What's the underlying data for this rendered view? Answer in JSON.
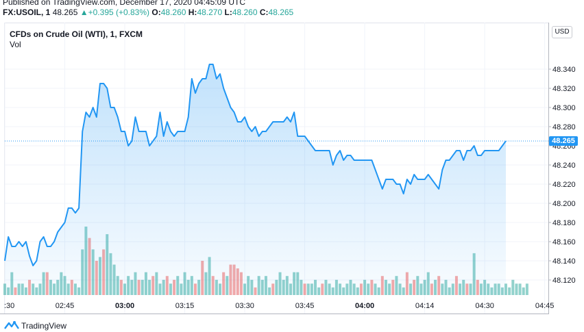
{
  "header": {
    "published": "Published on TradingView.com, December 17, 2020 04:45:09 UTC",
    "symbol": "FX:USOIL, 1",
    "last": "48.265",
    "change_arrow": "▲",
    "change": "+0.395 (+0.83%)",
    "o_label": "O:",
    "o_value": "48.260",
    "h_label": "H:",
    "h_value": "48.270",
    "l_label": "L:",
    "l_value": "48.260",
    "c_label": "C:",
    "c_value": "48.265"
  },
  "legend": {
    "title": "CFDs on Crude Oil (WTI), 1, FXCM",
    "vol": "Vol"
  },
  "currency_badge": "USD",
  "current_price_tag": "48.265",
  "footer": {
    "brand": "TradingView"
  },
  "colors": {
    "line": "#2196f3",
    "area": "#2196f3",
    "vol_up": "#26a69a",
    "vol_down": "#ef5350",
    "grid": "#f0f3fa"
  },
  "chart_data": {
    "type": "area",
    "ylim": [
      48.11,
      48.355
    ],
    "y_ticks": [
      "48.340",
      "48.320",
      "48.300",
      "48.280",
      "48.260",
      "48.240",
      "48.220",
      "48.200",
      "48.180",
      "48.160",
      "48.140",
      "48.120"
    ],
    "x_ticks": [
      {
        "label": ":30",
        "bold": false
      },
      {
        "label": "02:45",
        "bold": false
      },
      {
        "label": "03:00",
        "bold": true
      },
      {
        "label": "03:15",
        "bold": false
      },
      {
        "label": "03:30",
        "bold": false
      },
      {
        "label": "03:45",
        "bold": false
      },
      {
        "label": "04:00",
        "bold": true
      },
      {
        "label": "04:14",
        "bold": false
      },
      {
        "label": "04:30",
        "bold": false
      },
      {
        "label": "04:45",
        "bold": false
      }
    ],
    "x_tick_index": [
      0,
      17,
      34,
      51,
      68,
      85,
      102,
      119,
      136,
      153
    ],
    "current_price": 48.265,
    "values": [
      48.14,
      48.165,
      48.155,
      48.155,
      48.16,
      48.155,
      48.16,
      48.145,
      48.135,
      48.14,
      48.16,
      48.165,
      48.155,
      48.155,
      48.16,
      48.17,
      48.175,
      48.18,
      48.195,
      48.195,
      48.19,
      48.195,
      48.275,
      48.295,
      48.29,
      48.3,
      48.29,
      48.325,
      48.325,
      48.32,
      48.3,
      48.3,
      48.29,
      48.275,
      48.275,
      48.26,
      48.265,
      48.29,
      48.275,
      48.275,
      48.275,
      48.26,
      48.265,
      48.27,
      48.295,
      48.27,
      48.285,
      48.275,
      48.27,
      48.275,
      48.275,
      48.275,
      48.29,
      48.33,
      48.315,
      48.325,
      48.33,
      48.33,
      48.345,
      48.345,
      48.33,
      48.335,
      48.32,
      48.31,
      48.3,
      48.295,
      48.285,
      48.285,
      48.29,
      48.28,
      48.275,
      48.28,
      48.27,
      48.275,
      48.275,
      48.28,
      48.285,
      48.285,
      48.285,
      48.285,
      48.29,
      48.285,
      48.295,
      48.27,
      48.27,
      48.27,
      48.265,
      48.26,
      48.255,
      48.255,
      48.255,
      48.255,
      48.255,
      48.24,
      48.25,
      48.255,
      48.245,
      48.25,
      48.25,
      48.245,
      48.245,
      48.245,
      48.245,
      48.245,
      48.245,
      48.235,
      48.225,
      48.215,
      48.225,
      48.225,
      48.225,
      48.22,
      48.22,
      48.21,
      48.225,
      48.22,
      48.23,
      48.225,
      48.225,
      48.225,
      48.23,
      48.225,
      48.22,
      48.215,
      48.235,
      48.245,
      48.245,
      48.25,
      48.255,
      48.255,
      48.245,
      48.255,
      48.255,
      48.26,
      48.25,
      48.25,
      48.255,
      48.255,
      48.255,
      48.255,
      48.255,
      48.26,
      48.265
    ],
    "volume": [
      {
        "v": 3,
        "up": true
      },
      {
        "v": 2,
        "up": true
      },
      {
        "v": 6,
        "up": true
      },
      {
        "v": 2,
        "up": false
      },
      {
        "v": 3,
        "up": true
      },
      {
        "v": 3,
        "up": true
      },
      {
        "v": 2,
        "up": true
      },
      {
        "v": 4,
        "up": false
      },
      {
        "v": 3,
        "up": true
      },
      {
        "v": 2,
        "up": true
      },
      {
        "v": 3,
        "up": true
      },
      {
        "v": 6,
        "up": true
      },
      {
        "v": 6,
        "up": false
      },
      {
        "v": 4,
        "up": true
      },
      {
        "v": 3,
        "up": true
      },
      {
        "v": 4,
        "up": true
      },
      {
        "v": 6,
        "up": true
      },
      {
        "v": 5,
        "up": true
      },
      {
        "v": 3,
        "up": true
      },
      {
        "v": 4,
        "up": false
      },
      {
        "v": 3,
        "up": true
      },
      {
        "v": 2,
        "up": true
      },
      {
        "v": 12,
        "up": true
      },
      {
        "v": 18,
        "up": true
      },
      {
        "v": 15,
        "up": false
      },
      {
        "v": 12,
        "up": true
      },
      {
        "v": 9,
        "up": false
      },
      {
        "v": 10,
        "up": true
      },
      {
        "v": 12,
        "up": false
      },
      {
        "v": 16,
        "up": true
      },
      {
        "v": 11,
        "up": true
      },
      {
        "v": 8,
        "up": true
      },
      {
        "v": 5,
        "up": true
      },
      {
        "v": 4,
        "up": false
      },
      {
        "v": 3,
        "up": true
      },
      {
        "v": 5,
        "up": true
      },
      {
        "v": 4,
        "up": true
      },
      {
        "v": 6,
        "up": true
      },
      {
        "v": 4,
        "up": false
      },
      {
        "v": 4,
        "up": true
      },
      {
        "v": 6,
        "up": true
      },
      {
        "v": 4,
        "up": true
      },
      {
        "v": 5,
        "up": false
      },
      {
        "v": 6,
        "up": true
      },
      {
        "v": 3,
        "up": true
      },
      {
        "v": 4,
        "up": true
      },
      {
        "v": 5,
        "up": false
      },
      {
        "v": 3,
        "up": true
      },
      {
        "v": 4,
        "up": false
      },
      {
        "v": 5,
        "up": true
      },
      {
        "v": 3,
        "up": true
      },
      {
        "v": 6,
        "up": true
      },
      {
        "v": 4,
        "up": true
      },
      {
        "v": 5,
        "up": true
      },
      {
        "v": 3,
        "up": false
      },
      {
        "v": 4,
        "up": true
      },
      {
        "v": 9,
        "up": false
      },
      {
        "v": 6,
        "up": true
      },
      {
        "v": 10,
        "up": true
      },
      {
        "v": 5,
        "up": false
      },
      {
        "v": 4,
        "up": true
      },
      {
        "v": 3,
        "up": true
      },
      {
        "v": 6,
        "up": false
      },
      {
        "v": 5,
        "up": true
      },
      {
        "v": 8,
        "up": false
      },
      {
        "v": 8,
        "up": false
      },
      {
        "v": 7,
        "up": false
      },
      {
        "v": 6,
        "up": false
      },
      {
        "v": 3,
        "up": true
      },
      {
        "v": 5,
        "up": true
      },
      {
        "v": 4,
        "up": true
      },
      {
        "v": 2,
        "up": false
      },
      {
        "v": 5,
        "up": true
      },
      {
        "v": 4,
        "up": true
      },
      {
        "v": 5,
        "up": true
      },
      {
        "v": 2,
        "up": true
      },
      {
        "v": 3,
        "up": false
      },
      {
        "v": 4,
        "up": true
      },
      {
        "v": 6,
        "up": true
      },
      {
        "v": 4,
        "up": true
      },
      {
        "v": 5,
        "up": true
      },
      {
        "v": 3,
        "up": true
      },
      {
        "v": 6,
        "up": true
      },
      {
        "v": 6,
        "up": true
      },
      {
        "v": 4,
        "up": true
      },
      {
        "v": 3,
        "up": false
      },
      {
        "v": 3,
        "up": true
      },
      {
        "v": 3,
        "up": true
      },
      {
        "v": 4,
        "up": true
      },
      {
        "v": 2,
        "up": true
      },
      {
        "v": 3,
        "up": false
      },
      {
        "v": 4,
        "up": true
      },
      {
        "v": 3,
        "up": true
      },
      {
        "v": 2,
        "up": true
      },
      {
        "v": 4,
        "up": true
      },
      {
        "v": 3,
        "up": true
      },
      {
        "v": 2,
        "up": true
      },
      {
        "v": 3,
        "up": true
      },
      {
        "v": 4,
        "up": true
      },
      {
        "v": 3,
        "up": true
      },
      {
        "v": 2,
        "up": true
      },
      {
        "v": 3,
        "up": false
      },
      {
        "v": 4,
        "up": true
      },
      {
        "v": 3,
        "up": true
      },
      {
        "v": 4,
        "up": false
      },
      {
        "v": 3,
        "up": true
      },
      {
        "v": 2,
        "up": true
      },
      {
        "v": 5,
        "up": false
      },
      {
        "v": 4,
        "up": true
      },
      {
        "v": 3,
        "up": true
      },
      {
        "v": 4,
        "up": false
      },
      {
        "v": 5,
        "up": true
      },
      {
        "v": 3,
        "up": true
      },
      {
        "v": 2,
        "up": true
      },
      {
        "v": 6,
        "up": false
      },
      {
        "v": 3,
        "up": true
      },
      {
        "v": 4,
        "up": false
      },
      {
        "v": 5,
        "up": true
      },
      {
        "v": 3,
        "up": true
      },
      {
        "v": 4,
        "up": true
      },
      {
        "v": 6,
        "up": true
      },
      {
        "v": 3,
        "up": false
      },
      {
        "v": 4,
        "up": true
      },
      {
        "v": 5,
        "up": false
      },
      {
        "v": 3,
        "up": true
      },
      {
        "v": 4,
        "up": true
      },
      {
        "v": 2,
        "up": true
      },
      {
        "v": 3,
        "up": true
      },
      {
        "v": 5,
        "up": false
      },
      {
        "v": 3,
        "up": true
      },
      {
        "v": 4,
        "up": true
      },
      {
        "v": 3,
        "up": false
      },
      {
        "v": 3,
        "up": true
      },
      {
        "v": 11,
        "up": true
      },
      {
        "v": 4,
        "up": false
      },
      {
        "v": 3,
        "up": true
      },
      {
        "v": 4,
        "up": true
      },
      {
        "v": 3,
        "up": true
      },
      {
        "v": 2,
        "up": true
      },
      {
        "v": 3,
        "up": true
      },
      {
        "v": 3,
        "up": true
      },
      {
        "v": 2,
        "up": true
      },
      {
        "v": 3,
        "up": true
      },
      {
        "v": 2,
        "up": true
      },
      {
        "v": 4,
        "up": true
      },
      {
        "v": 3,
        "up": true
      },
      {
        "v": 3,
        "up": true
      },
      {
        "v": 2,
        "up": true
      },
      {
        "v": 3,
        "up": true
      }
    ]
  }
}
